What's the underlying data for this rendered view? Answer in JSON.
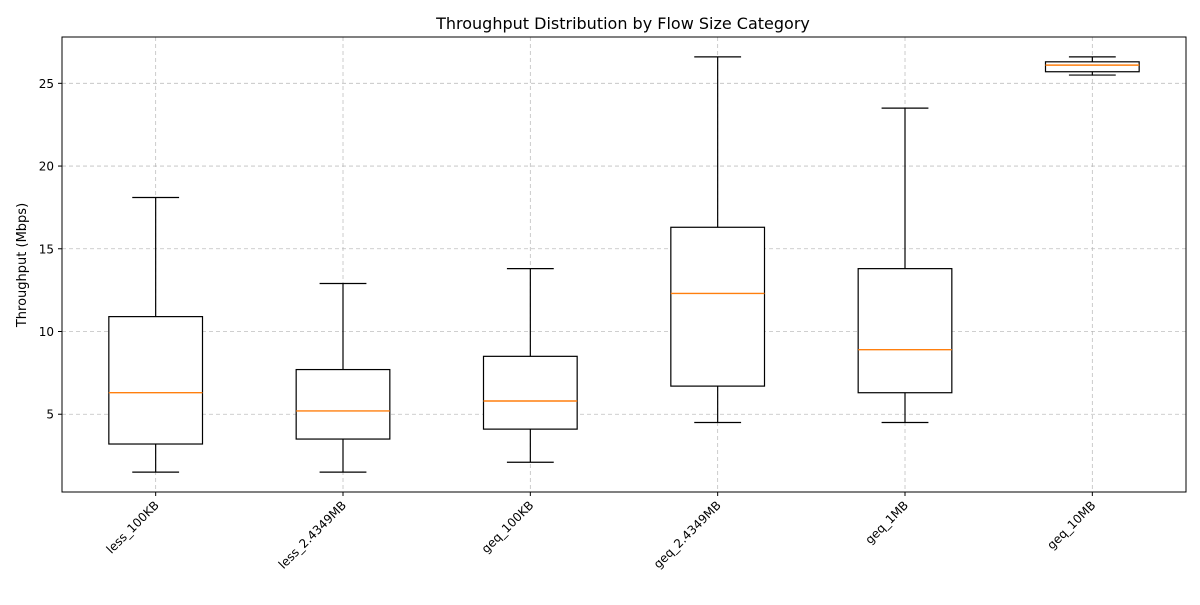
{
  "chart_data": {
    "type": "box",
    "title": "Throughput Distribution by Flow Size Category",
    "xlabel": "",
    "ylabel": "Throughput (Mbps)",
    "ylim": [
      0.3,
      27.8
    ],
    "yticks": [
      5,
      10,
      15,
      20,
      25
    ],
    "grid": true,
    "colors": {
      "box": "#000000",
      "median": "#ff7f0e",
      "grid": "#b0b0b0"
    },
    "categories": [
      "less_100KB",
      "less_2.4349MB",
      "geq_100KB",
      "geq_2.4349MB",
      "geq_1MB",
      "geq_10MB"
    ],
    "boxes": [
      {
        "min": 1.5,
        "q1": 3.2,
        "median": 6.3,
        "q3": 10.9,
        "max": 18.1
      },
      {
        "min": 1.5,
        "q1": 3.5,
        "median": 5.2,
        "q3": 7.7,
        "max": 12.9
      },
      {
        "min": 2.1,
        "q1": 4.1,
        "median": 5.8,
        "q3": 8.5,
        "max": 13.8
      },
      {
        "min": 4.5,
        "q1": 6.7,
        "median": 12.3,
        "q3": 16.3,
        "max": 26.6
      },
      {
        "min": 4.5,
        "q1": 6.3,
        "median": 8.9,
        "q3": 13.8,
        "max": 23.5
      },
      {
        "min": 25.5,
        "q1": 25.7,
        "median": 26.1,
        "q3": 26.3,
        "max": 26.6
      }
    ]
  }
}
